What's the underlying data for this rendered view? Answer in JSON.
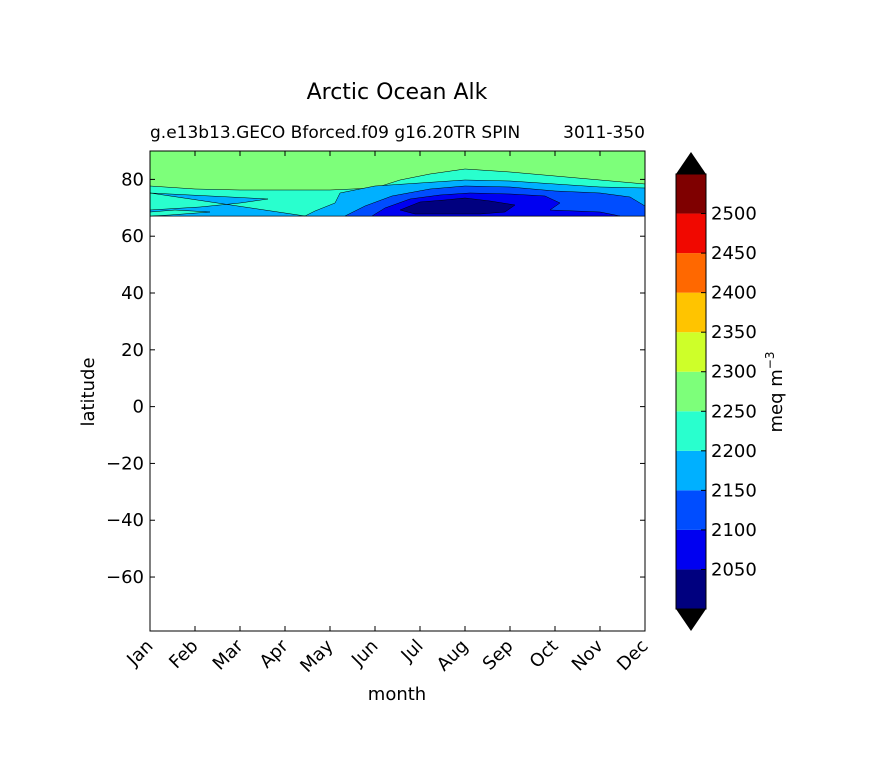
{
  "chart_data": {
    "type": "contour",
    "title": "Arctic Ocean Alk",
    "subtitle_left": "g.e13b13.GECO Bforced.f09 g16.20TR SPIN",
    "subtitle_right": "3011-350",
    "xlabel": "month",
    "ylabel": "latitude",
    "x_categories": [
      "Jan",
      "Feb",
      "Mar",
      "Apr",
      "May",
      "Jun",
      "Jul",
      "Aug",
      "Sep",
      "Oct",
      "Nov",
      "Dec"
    ],
    "ylim": [
      -79,
      90
    ],
    "y_ticks": [
      80,
      60,
      40,
      20,
      0,
      -20,
      -40,
      -60
    ],
    "colorbar": {
      "label": "meq m",
      "label_superscript": "−3",
      "extend": "both",
      "levels": [
        2000,
        2050,
        2100,
        2150,
        2200,
        2250,
        2300,
        2350,
        2400,
        2450,
        2500,
        2550
      ],
      "tick_labels": [
        "2050",
        "2100",
        "2150",
        "2200",
        "2250",
        "2300",
        "2350",
        "2400",
        "2450",
        "2500"
      ],
      "band_colors": [
        "#00007f",
        "#0000f1",
        "#004dff",
        "#00b0ff",
        "#29ffce",
        "#7dff7a",
        "#ceff29",
        "#ffc400",
        "#ff6800",
        "#f10800",
        "#7f0000"
      ],
      "under_color": "#000000",
      "over_color": "#000000"
    },
    "data_region": {
      "lat_min": 66,
      "lat_max": 90
    },
    "regions": [
      {
        "level": "2250-2300",
        "color": "#7dff7a",
        "months": [
          1,
          12
        ],
        "lat": [
          66,
          90
        ],
        "boundary_lat_by_month": [
          78,
          77,
          76.5,
          76.5,
          76.5,
          77,
          81,
          84,
          83,
          81.5,
          80.5,
          79
        ]
      },
      {
        "level": "2200-2250",
        "color": "#29ffce",
        "months": [
          1,
          12
        ],
        "lat": [
          66,
          84
        ]
      },
      {
        "level": "2150-2200",
        "color": "#00b0ff",
        "months": [
          1,
          12
        ],
        "lat": [
          66,
          77
        ]
      },
      {
        "level": "2100-2150",
        "color": "#004dff",
        "months": [
          6,
          12
        ],
        "lat": [
          66,
          76
        ]
      },
      {
        "level": "2050-2100",
        "color": "#0000f1",
        "months": [
          6.5,
          11
        ],
        "lat": [
          66,
          75
        ]
      },
      {
        "level": "2000-2050",
        "color": "#00007f",
        "months": [
          7.5,
          8.6
        ],
        "lat": [
          70,
          73
        ]
      }
    ]
  }
}
